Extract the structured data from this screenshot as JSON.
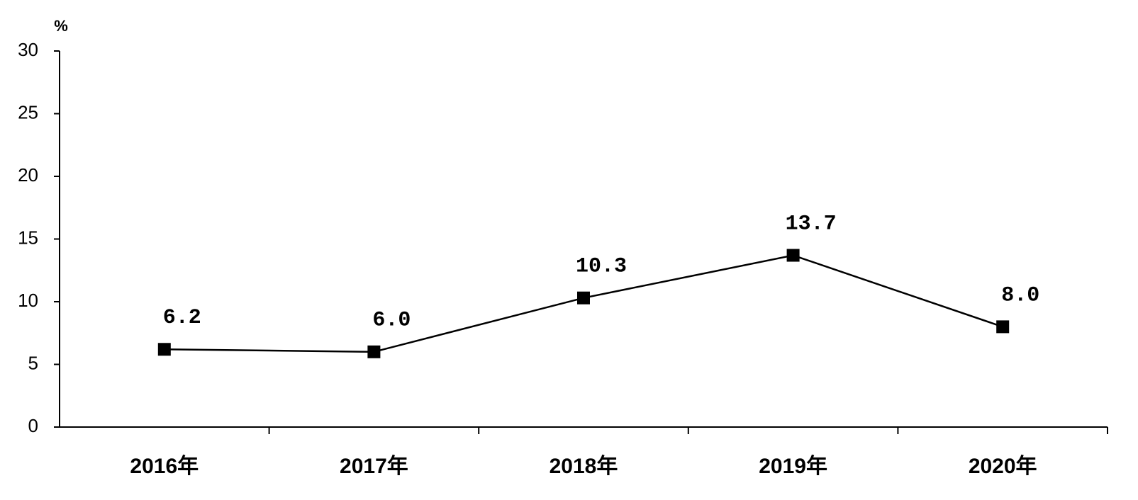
{
  "chart_data": {
    "type": "line",
    "y_label": "%",
    "categories": [
      "2016年",
      "2017年",
      "2018年",
      "2019年",
      "2020年"
    ],
    "values": [
      6.2,
      6.0,
      10.3,
      13.7,
      8.0
    ],
    "value_labels": [
      "6.2",
      "6.0",
      "10.3",
      "13.7",
      "8.0"
    ],
    "color": "#000000",
    "ylim": [
      0,
      30
    ],
    "yticks": [
      0,
      5,
      10,
      15,
      20,
      25,
      30
    ],
    "grid": false
  }
}
